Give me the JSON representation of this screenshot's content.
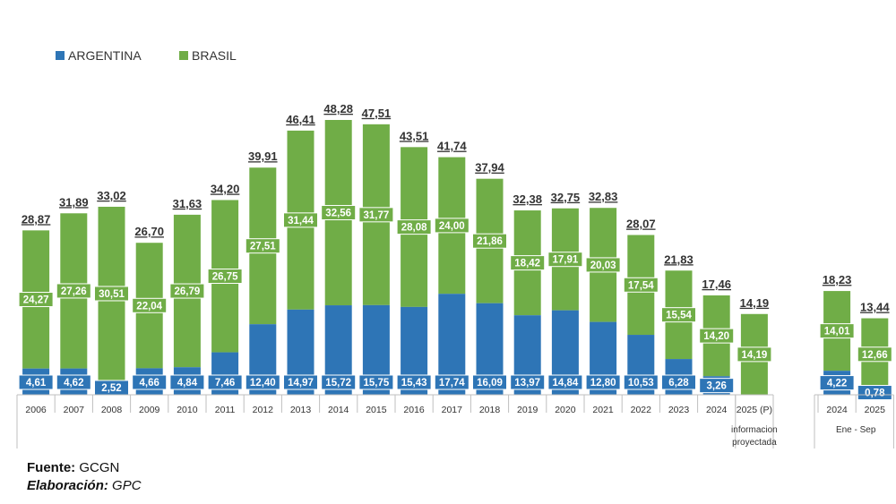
{
  "chart_data": {
    "type": "bar",
    "stacked": true,
    "legend_position": "top-left",
    "colors": {
      "ARGENTINA": "#2e75b6",
      "BRASIL": "#70ad47",
      "label_fill": "#ffffff"
    },
    "ylim": [
      0,
      50
    ],
    "series": [
      {
        "name": "ARGENTINA"
      },
      {
        "name": "BRASIL"
      }
    ],
    "categories": [
      "2006",
      "2007",
      "2008",
      "2009",
      "2010",
      "2011",
      "2012",
      "2013",
      "2014",
      "2015",
      "2016",
      "2017",
      "2018",
      "2019",
      "2020",
      "2021",
      "2022",
      "2023",
      "2024",
      "2025 (P)",
      "2024",
      "2025"
    ],
    "argentina_values": [
      4.61,
      4.62,
      2.52,
      4.66,
      4.84,
      7.46,
      12.4,
      14.97,
      15.72,
      15.75,
      15.43,
      17.74,
      16.09,
      13.97,
      14.84,
      12.8,
      10.53,
      6.28,
      3.26,
      null,
      4.22,
      0.78
    ],
    "brasil_values": [
      24.27,
      27.26,
      30.51,
      22.04,
      26.79,
      26.75,
      27.51,
      31.44,
      32.56,
      31.77,
      28.08,
      24.0,
      21.86,
      18.42,
      17.91,
      20.03,
      17.54,
      15.54,
      14.2,
      14.19,
      14.01,
      12.66
    ],
    "totals": [
      28.87,
      31.89,
      33.02,
      26.7,
      31.63,
      34.2,
      39.91,
      46.41,
      48.28,
      47.51,
      43.51,
      41.74,
      37.94,
      32.38,
      32.75,
      32.83,
      28.07,
      21.83,
      17.46,
      14.19,
      18.23,
      13.44
    ],
    "argentina_labels": [
      "4,61",
      "4,62",
      "2,52",
      "4,66",
      "4,84",
      "7,46",
      "12,40",
      "14,97",
      "15,72",
      "15,75",
      "15,43",
      "17,74",
      "16,09",
      "13,97",
      "14,84",
      "12,80",
      "10,53",
      "6,28",
      "3,26",
      "",
      "4,22",
      "0,78"
    ],
    "brasil_labels": [
      "24,27",
      "27,26",
      "30,51",
      "22,04",
      "26,79",
      "26,75",
      "27,51",
      "31,44",
      "32,56",
      "31,77",
      "28,08",
      "24,00",
      "21,86",
      "18,42",
      "17,91",
      "20,03",
      "17,54",
      "15,54",
      "14,20",
      "14,19",
      "14,01",
      "12,66"
    ],
    "total_labels": [
      "28,87",
      "31,89",
      "33,02",
      "26,70",
      "31,63",
      "34,20",
      "39,91",
      "46,41",
      "48,28",
      "47,51",
      "43,51",
      "41,74",
      "37,94",
      "32,38",
      "32,75",
      "32,83",
      "28,07",
      "21,83",
      "17,46",
      "14,19",
      "18,23",
      "13,44"
    ],
    "group_labels": [
      {
        "text": "informacion\nproyectada",
        "categories": [
          19
        ]
      },
      {
        "text": "Ene - Sep",
        "categories": [
          20,
          21
        ]
      }
    ]
  },
  "footer": {
    "source_label": "Fuente:",
    "source_value": "GCGN",
    "elaboration_label": "Elaboración:",
    "elaboration_value": "GPC"
  }
}
